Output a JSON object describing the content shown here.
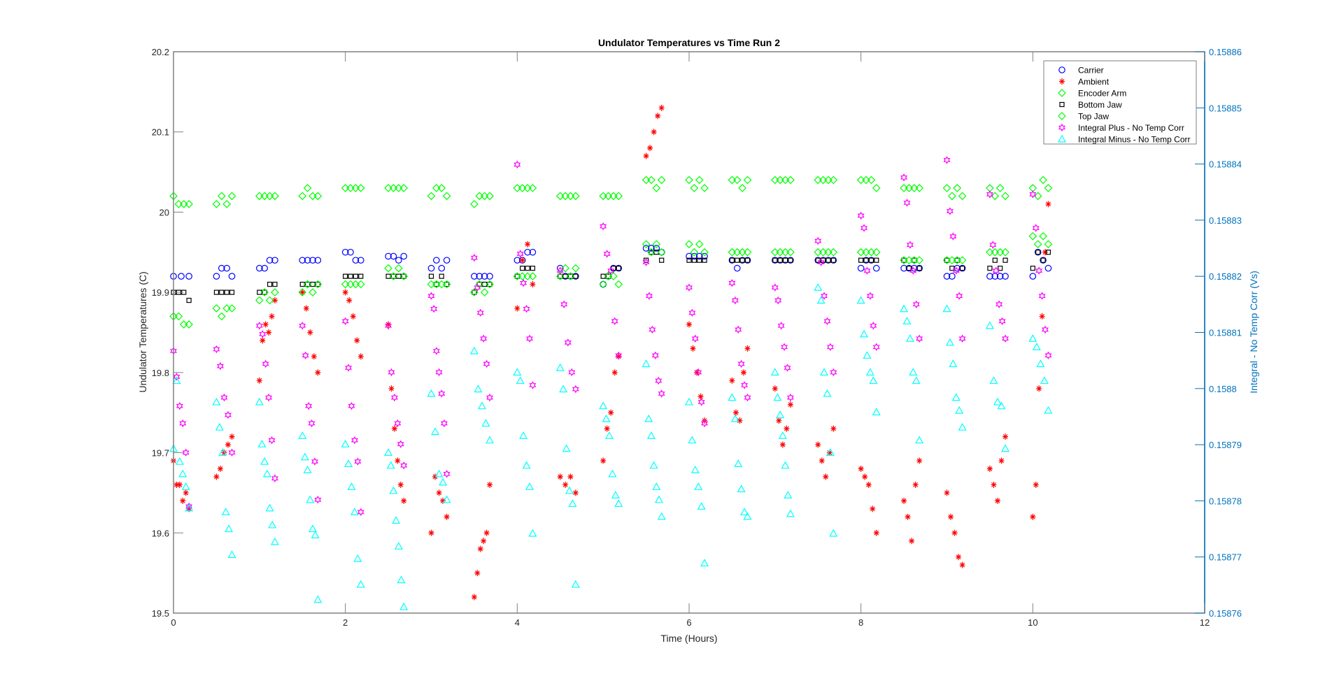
{
  "chart_data": {
    "type": "scatter",
    "title": "Undulator Temperatures vs Time Run 2",
    "xlabel": "Time (Hours)",
    "ylabel": "Undulator Temperatures (C)",
    "ylabel_right": "Integral - No Temp Corr (Vs)",
    "xlim": [
      0,
      12
    ],
    "ylim": [
      19.5,
      20.2
    ],
    "ylim_right": [
      0.15876,
      0.15886
    ],
    "xticks": [
      "0",
      "2",
      "4",
      "6",
      "8",
      "10",
      "12"
    ],
    "yticks": [
      "19.5",
      "19.6",
      "19.7",
      "19.8",
      "19.9",
      "20",
      "20.1",
      "20.2"
    ],
    "yticks_right": [
      "0.15876",
      "0.15877",
      "0.15878",
      "0.15879",
      "0.1588",
      "0.15881",
      "0.15882",
      "0.15883",
      "0.15884",
      "0.15885",
      "0.15886"
    ],
    "grid": false,
    "legend_position": "top-right",
    "cluster_start_times": [
      0,
      0.5,
      1.0,
      1.5,
      2.0,
      2.5,
      3.0,
      3.5,
      4.0,
      4.5,
      5.0,
      5.5,
      6.0,
      6.5,
      7.0,
      7.5,
      8.0,
      8.5,
      9.0,
      9.5,
      10.0
    ],
    "cluster_span_hours": 0.18,
    "series": [
      {
        "name": "Carrier",
        "marker": "circle",
        "color": "#0000FF",
        "axis": "left",
        "clusters": [
          [
            19.92,
            19.92,
            19.92
          ],
          [
            19.92,
            19.93,
            19.93,
            19.92
          ],
          [
            19.93,
            19.93,
            19.94,
            19.94
          ],
          [
            19.94,
            19.94,
            19.94,
            19.94
          ],
          [
            19.95,
            19.95,
            19.94,
            19.94
          ],
          [
            19.945,
            19.945,
            19.94,
            19.945
          ],
          [
            19.93,
            19.94,
            19.93,
            19.94
          ],
          [
            19.92,
            19.92,
            19.92,
            19.92
          ],
          [
            19.94,
            19.94,
            19.95,
            19.95
          ],
          [
            19.93,
            19.92,
            19.92,
            19.92
          ],
          [
            19.91,
            19.92,
            19.93,
            19.93
          ],
          [
            19.955,
            19.955,
            19.955,
            19.95
          ],
          [
            19.945,
            19.945,
            19.945,
            19.945
          ],
          [
            19.94,
            19.93,
            19.94,
            19.94
          ],
          [
            19.94,
            19.94,
            19.94,
            19.94
          ],
          [
            19.94,
            19.94,
            19.94,
            19.94
          ],
          [
            19.93,
            19.94,
            19.94,
            19.93
          ],
          [
            19.93,
            19.93,
            19.93,
            19.93
          ],
          [
            19.92,
            19.92,
            19.93,
            19.93
          ],
          [
            19.92,
            19.92,
            19.92,
            19.92
          ],
          [
            19.92,
            19.95,
            19.94,
            19.93
          ]
        ]
      },
      {
        "name": "Ambient",
        "marker": "star",
        "color": "#FF0000",
        "axis": "left",
        "clusters": [
          [
            19.69,
            19.66,
            19.66,
            19.64,
            19.65,
            19.63
          ],
          [
            19.67,
            19.68,
            19.7,
            19.71,
            19.72
          ],
          [
            19.79,
            19.84,
            19.86,
            19.85,
            19.87,
            19.89
          ],
          [
            19.9,
            19.88,
            19.85,
            19.82,
            19.8
          ],
          [
            19.9,
            19.89,
            19.87,
            19.84,
            19.82
          ],
          [
            19.86,
            19.78,
            19.73,
            19.69,
            19.66,
            19.64
          ],
          [
            19.6,
            19.67,
            19.65,
            19.64,
            19.62
          ],
          [
            19.52,
            19.55,
            19.58,
            19.59,
            19.6,
            19.66
          ],
          [
            19.88,
            19.94,
            19.96,
            19.91
          ],
          [
            19.67,
            19.66,
            19.67,
            19.65
          ],
          [
            19.69,
            19.73,
            19.75,
            19.8,
            19.82
          ],
          [
            20.07,
            20.08,
            20.1,
            20.12,
            20.13
          ],
          [
            19.86,
            19.83,
            19.8,
            19.77,
            19.74
          ],
          [
            19.79,
            19.75,
            19.74,
            19.8,
            19.83
          ],
          [
            19.78,
            19.74,
            19.71,
            19.73,
            19.76
          ],
          [
            19.71,
            19.69,
            19.67,
            19.7,
            19.73
          ],
          [
            19.68,
            19.67,
            19.66,
            19.63,
            19.6
          ],
          [
            19.64,
            19.62,
            19.59,
            19.66,
            19.69
          ],
          [
            19.65,
            19.62,
            19.6,
            19.57,
            19.56
          ],
          [
            19.68,
            19.66,
            19.64,
            19.69,
            19.72
          ],
          [
            19.62,
            19.66,
            19.78,
            19.87,
            19.95,
            20.01
          ]
        ]
      },
      {
        "name": "Encoder Arm",
        "marker": "diamond",
        "color": "#00FF00",
        "axis": "left",
        "clusters": [
          [
            20.02,
            20.01,
            20.01,
            20.01
          ],
          [
            20.01,
            20.02,
            20.01,
            20.02
          ],
          [
            20.02,
            20.02,
            20.02,
            20.02
          ],
          [
            20.02,
            20.03,
            20.02,
            20.02
          ],
          [
            20.03,
            20.03,
            20.03,
            20.03
          ],
          [
            20.03,
            20.03,
            20.03,
            20.03
          ],
          [
            20.02,
            20.03,
            20.03,
            20.02
          ],
          [
            20.01,
            20.02,
            20.02,
            20.02
          ],
          [
            20.03,
            20.03,
            20.03,
            20.03
          ],
          [
            20.02,
            20.02,
            20.02,
            20.02
          ],
          [
            20.02,
            20.02,
            20.02,
            20.02
          ],
          [
            20.04,
            20.04,
            20.03,
            20.04
          ],
          [
            20.04,
            20.03,
            20.04,
            20.03
          ],
          [
            20.04,
            20.04,
            20.03,
            20.04
          ],
          [
            20.04,
            20.04,
            20.04,
            20.04
          ],
          [
            20.04,
            20.04,
            20.04,
            20.04
          ],
          [
            20.04,
            20.04,
            20.04,
            20.03
          ],
          [
            20.03,
            20.03,
            20.03,
            20.03
          ],
          [
            20.03,
            20.02,
            20.03,
            20.02
          ],
          [
            20.03,
            20.02,
            20.03,
            20.02
          ],
          [
            20.03,
            20.02,
            20.04,
            20.03
          ]
        ]
      },
      {
        "name": "Bottom Jaw",
        "marker": "square",
        "color": "#000000",
        "axis": "left",
        "clusters": [
          [
            19.9,
            19.9,
            19.9,
            19.89
          ],
          [
            19.9,
            19.9,
            19.9,
            19.9
          ],
          [
            19.9,
            19.9,
            19.91,
            19.91
          ],
          [
            19.91,
            19.91,
            19.91,
            19.91
          ],
          [
            19.92,
            19.92,
            19.92,
            19.92
          ],
          [
            19.92,
            19.92,
            19.92,
            19.92
          ],
          [
            19.92,
            19.91,
            19.92,
            19.91
          ],
          [
            19.9,
            19.91,
            19.91,
            19.91
          ],
          [
            19.92,
            19.93,
            19.93,
            19.93
          ],
          [
            19.92,
            19.92,
            19.92,
            19.92
          ],
          [
            19.92,
            19.92,
            19.93,
            19.93
          ],
          [
            19.94,
            19.95,
            19.95,
            19.94
          ],
          [
            19.94,
            19.94,
            19.94,
            19.94
          ],
          [
            19.94,
            19.94,
            19.94,
            19.94
          ],
          [
            19.94,
            19.94,
            19.94,
            19.94
          ],
          [
            19.94,
            19.94,
            19.94,
            19.94
          ],
          [
            19.94,
            19.94,
            19.94,
            19.94
          ],
          [
            19.94,
            19.93,
            19.94,
            19.93
          ],
          [
            19.94,
            19.93,
            19.94,
            19.93
          ],
          [
            19.93,
            19.94,
            19.93,
            19.94
          ],
          [
            19.93,
            19.95,
            19.94,
            19.95
          ]
        ]
      },
      {
        "name": "Top Jaw",
        "marker": "diamond",
        "color": "#00FF00",
        "axis": "left",
        "clusters": [
          [
            19.87,
            19.87,
            19.86,
            19.86
          ],
          [
            19.88,
            19.87,
            19.88,
            19.88
          ],
          [
            19.89,
            19.9,
            19.89,
            19.9
          ],
          [
            19.9,
            19.91,
            19.9,
            19.91
          ],
          [
            19.91,
            19.91,
            19.91,
            19.91
          ],
          [
            19.93,
            19.92,
            19.93,
            19.92
          ],
          [
            19.91,
            19.91,
            19.91,
            19.91
          ],
          [
            19.9,
            19.91,
            19.9,
            19.91
          ],
          [
            19.92,
            19.92,
            19.92,
            19.92
          ],
          [
            19.92,
            19.93,
            19.92,
            19.93
          ],
          [
            19.91,
            19.92,
            19.92,
            19.91
          ],
          [
            19.96,
            19.95,
            19.96,
            19.95
          ],
          [
            19.96,
            19.95,
            19.96,
            19.95
          ],
          [
            19.95,
            19.95,
            19.95,
            19.95
          ],
          [
            19.95,
            19.95,
            19.95,
            19.95
          ],
          [
            19.95,
            19.95,
            19.95,
            19.95
          ],
          [
            19.95,
            19.95,
            19.95,
            19.95
          ],
          [
            19.94,
            19.94,
            19.94,
            19.94
          ],
          [
            19.94,
            19.94,
            19.94,
            19.94
          ],
          [
            19.95,
            19.95,
            19.95,
            19.95
          ],
          [
            19.97,
            19.96,
            19.97,
            19.96
          ]
        ]
      },
      {
        "name": "Integral Plus -  No Temp Corr",
        "marker": "hexagram",
        "color": "#FF00FF",
        "axis": "right",
        "clusters": [
          [
            0.1588067,
            0.1588021,
            0.1587969,
            0.1587938,
            0.1587886,
            0.158779
          ],
          [
            0.158807,
            0.158804,
            0.1587984,
            0.1587953,
            0.1587886
          ],
          [
            0.1588112,
            0.1588097,
            0.1588044,
            0.1587984,
            0.1587908,
            0.158784
          ],
          [
            0.1588112,
            0.1588059,
            0.1587969,
            0.1587938,
            0.158787,
            0.1587802
          ],
          [
            0.158812,
            0.1588037,
            0.1587969,
            0.1587908,
            0.158787,
            0.158778
          ],
          [
            0.1588112,
            0.1588029,
            0.1587984,
            0.1587938,
            0.1587901,
            0.1587863
          ],
          [
            0.1588165,
            0.1588142,
            0.1588067,
            0.1588029,
            0.1587991,
            0.1587938,
            0.1587848
          ],
          [
            0.1588233,
            0.158818,
            0.1588135,
            0.1588089,
            0.1588044,
            0.1587984
          ],
          [
            0.1588399,
            0.158824,
            0.1588188,
            0.1588142,
            0.1588089,
            0.1588006
          ],
          [
            0.158821,
            0.158815,
            0.1588082,
            0.1588029,
            0.1587999
          ],
          [
            0.1588289,
            0.158824,
            0.158821,
            0.158812,
            0.1588059
          ],
          [
            0.1588225,
            0.1588165,
            0.1588105,
            0.1588059,
            0.1588014,
            0.1587991
          ],
          [
            0.158818,
            0.1588135,
            0.1588089,
            0.1588029,
            0.1587976,
            0.1587938
          ],
          [
            0.1588188,
            0.1588157,
            0.1588105,
            0.1588044,
            0.1588006,
            0.1587984
          ],
          [
            0.158818,
            0.1588157,
            0.1588112,
            0.1588074,
            0.1588037,
            0.1587984
          ],
          [
            0.1588263,
            0.1588225,
            0.1588165,
            0.158812,
            0.1588074,
            0.1588029
          ],
          [
            0.1588308,
            0.1588286,
            0.158821,
            0.1588165,
            0.1588112,
            0.1588074
          ],
          [
            0.1588376,
            0.1588331,
            0.1588256,
            0.158821,
            0.158815,
            0.1588089
          ],
          [
            0.1588407,
            0.1588316,
            0.1588271,
            0.158821,
            0.1588165,
            0.1588089
          ],
          [
            0.1588346,
            0.1588256,
            0.158821,
            0.158815,
            0.158812,
            0.1588089
          ],
          [
            0.1588346,
            0.1588286,
            0.158821,
            0.1588165,
            0.1588105,
            0.1588059
          ]
        ]
      },
      {
        "name": "Integral Minus -  No Temp Corr",
        "marker": "triangle",
        "color": "#00FFFF",
        "axis": "right",
        "clusters": [
          [
            0.1587893,
            0.1588014,
            0.158787,
            0.1587848,
            0.1587825,
            0.1587787
          ],
          [
            0.1587976,
            0.1587931,
            0.1587886,
            0.158778,
            0.158775,
            0.1587704
          ],
          [
            0.1587976,
            0.1587901,
            0.158787,
            0.1587848,
            0.1587787,
            0.1587757,
            0.1587727
          ],
          [
            0.1587916,
            0.1587878,
            0.1587855,
            0.1587802,
            0.158775,
            0.1587739,
            0.1587624
          ],
          [
            0.1587901,
            0.1587866,
            0.1587825,
            0.158778,
            0.1587697,
            0.1587651
          ],
          [
            0.1587886,
            0.1587863,
            0.1587818,
            0.1587765,
            0.1587719,
            0.1587659,
            0.1587611
          ],
          [
            0.1587991,
            0.1587923,
            0.1587848,
            0.1587833,
            0.1587802
          ],
          [
            0.1588067,
            0.1587999,
            0.1587969,
            0.1587938,
            0.1587908
          ],
          [
            0.1588029,
            0.1588014,
            0.1587916,
            0.1587863,
            0.1587825,
            0.1587742
          ],
          [
            0.1588037,
            0.1587999,
            0.1587893,
            0.1587818,
            0.1587795,
            0.1587651
          ],
          [
            0.1587969,
            0.1587946,
            0.1587916,
            0.1587848,
            0.158781,
            0.1587795
          ],
          [
            0.1588044,
            0.1587946,
            0.1587916,
            0.1587863,
            0.1587825,
            0.1587802,
            0.1587772
          ],
          [
            0.1587976,
            0.1587908,
            0.1587855,
            0.1587825,
            0.158779,
            0.1587689
          ],
          [
            0.1587984,
            0.1587946,
            0.1587866,
            0.1587821,
            0.158778,
            0.1587772
          ],
          [
            0.1588029,
            0.1587984,
            0.1587953,
            0.1587916,
            0.1587863,
            0.158781,
            0.1587777
          ],
          [
            0.158818,
            0.1588157,
            0.1588029,
            0.1587991,
            0.1587886,
            0.1587742
          ],
          [
            0.1588157,
            0.1588097,
            0.1588059,
            0.1588029,
            0.1588014,
            0.1587958
          ],
          [
            0.1588142,
            0.158812,
            0.1588089,
            0.1588029,
            0.1588014,
            0.1587908
          ],
          [
            0.1588142,
            0.1588082,
            0.1588044,
            0.1587984,
            0.1587961,
            0.1587931
          ],
          [
            0.1588112,
            0.1588014,
            0.1587976,
            0.1587969,
            0.1587893
          ],
          [
            0.1588089,
            0.1588074,
            0.1588044,
            0.1588014,
            0.1587961
          ]
        ]
      }
    ]
  }
}
